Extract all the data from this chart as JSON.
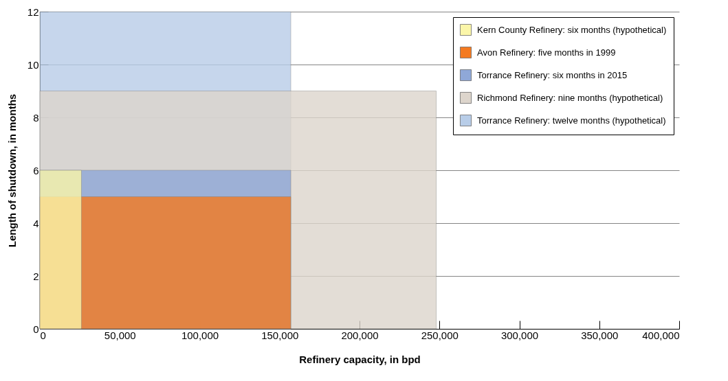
{
  "chart_data": {
    "type": "area",
    "xlabel": "Refinery capacity, in bpd",
    "ylabel": "Length of shutdown, in months",
    "xlim": [
      0,
      400000
    ],
    "xticks": [
      0,
      {
        "value": 50000,
        "label": "50,000"
      },
      {
        "value": 100000,
        "label": "100,000"
      },
      {
        "value": 150000,
        "label": "150,000"
      },
      {
        "value": 200000,
        "label": "200,000"
      },
      {
        "value": 250000,
        "label": "250,000"
      },
      {
        "value": 300000,
        "label": "300,000"
      },
      {
        "value": 350000,
        "label": "350,000"
      },
      {
        "value": 400000,
        "label": "400,000"
      }
    ],
    "ylim": [
      0,
      12
    ],
    "yticks": [
      0,
      2,
      4,
      6,
      8,
      10,
      12
    ],
    "grid": "y",
    "legend": "right",
    "series": [
      {
        "name": "Kern County Refinery: six months (hypothetical)",
        "color": "#fbf6a9",
        "x": [
          0,
          26000
        ],
        "values": [
          6,
          6
        ]
      },
      {
        "name": "Avon Refinery: five months in 1999",
        "color": "#f47a20",
        "x": [
          0,
          157000
        ],
        "values": [
          5,
          5
        ]
      },
      {
        "name": "Torrance Refinery: six months in 2015",
        "color": "#8fa8d8",
        "x": [
          0,
          157000
        ],
        "values": [
          6,
          6
        ]
      },
      {
        "name": "Richmond Refinery: nine months (hypothetical)",
        "color": "#ddd5cc",
        "x": [
          0,
          248000
        ],
        "values": [
          9,
          9
        ]
      },
      {
        "name": "Torrance Refinery: twelve months (hypothetical)",
        "color": "#b8cde8",
        "x": [
          0,
          157000
        ],
        "values": [
          12,
          12
        ]
      }
    ]
  }
}
